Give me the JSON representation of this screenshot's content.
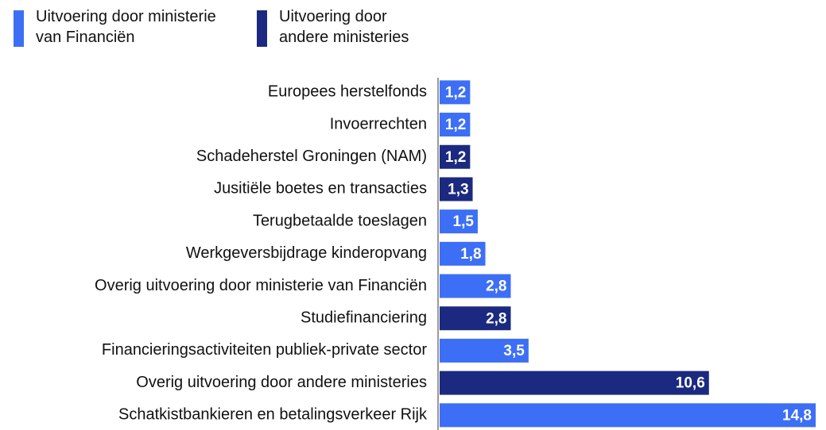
{
  "chart_data": {
    "type": "bar",
    "orientation": "horizontal",
    "categories": [
      "Europees herstelfonds",
      "Invoerrechten",
      "Schadeherstel Groningen (NAM)",
      "Jusitiële boetes en transacties",
      "Terugbetaalde toeslagen",
      "Werkgeversbijdrage kinderopvang",
      "Overig uitvoering door ministerie van Financiën",
      "Studiefinanciering",
      "Financieringsactiviteiten publiek-private sector",
      "Overig uitvoering door andere ministeries",
      "Schatkistbankieren en betalingsverkeer Rijk"
    ],
    "series": [
      {
        "name": "Uitvoering door ministerie van Financiën",
        "color": "#3d6ff6",
        "values": [
          1.2,
          1.2,
          null,
          null,
          1.5,
          1.8,
          2.8,
          null,
          3.5,
          null,
          14.8
        ],
        "value_labels": [
          "1,2",
          "1,2",
          null,
          null,
          "1,5",
          "1,8",
          "2,8",
          null,
          "3,5",
          null,
          "14,8"
        ]
      },
      {
        "name": "Uitvoering door andere ministeries",
        "color": "#1b2a80",
        "values": [
          null,
          null,
          1.2,
          1.3,
          null,
          null,
          null,
          2.8,
          null,
          10.6,
          null
        ],
        "value_labels": [
          null,
          null,
          "1,2",
          "1,3",
          null,
          null,
          null,
          "2,8",
          null,
          "10,6",
          null
        ]
      }
    ]
  }
}
